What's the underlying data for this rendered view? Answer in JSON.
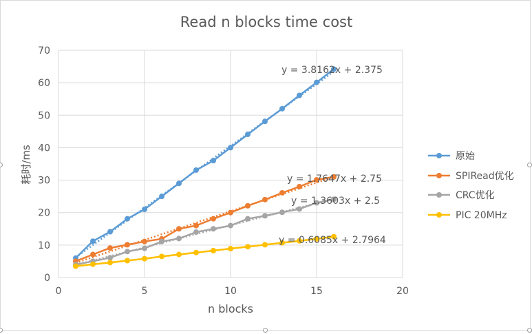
{
  "chart_data": {
    "type": "line",
    "title": "Read n blocks time  cost",
    "xlabel": "n blocks",
    "ylabel": "耗时/ms",
    "xlim": [
      0,
      20
    ],
    "ylim": [
      0,
      70
    ],
    "xticks": [
      0,
      5,
      10,
      15,
      20
    ],
    "yticks": [
      0,
      10,
      20,
      30,
      40,
      50,
      60,
      70
    ],
    "grid": true,
    "legend_position": "right",
    "x": [
      1,
      2,
      3,
      4,
      5,
      6,
      7,
      8,
      9,
      10,
      11,
      12,
      13,
      14,
      15,
      16
    ],
    "series": [
      {
        "name": "原始",
        "color": "#5b9bd5",
        "values": [
          6.0,
          11.2,
          14.1,
          18.1,
          21.0,
          25.0,
          29.0,
          33.1,
          36.0,
          40.0,
          44.1,
          48.1,
          52.0,
          56.1,
          60.1,
          64.2
        ],
        "trendline": {
          "slope": 3.8162,
          "intercept": 2.375,
          "label": "y = 3.8162x + 2.375"
        }
      },
      {
        "name": "SPIRead优化",
        "color": "#ed7d31",
        "values": [
          5.0,
          7.1,
          9.1,
          10.1,
          11.1,
          11.9,
          15.0,
          16.0,
          18.1,
          20.0,
          22.1,
          24.0,
          26.1,
          28.0,
          30.1,
          31.0
        ],
        "trendline": {
          "slope": 1.7647,
          "intercept": 2.75,
          "label": "y = 1.7647x + 2.75"
        }
      },
      {
        "name": "CRC优化",
        "color": "#a5a5a5",
        "values": [
          4.0,
          5.0,
          6.1,
          8.0,
          9.0,
          11.1,
          12.0,
          14.0,
          15.0,
          16.0,
          18.1,
          19.0,
          20.1,
          21.1,
          23.0,
          24.1
        ],
        "trendline": {
          "slope": 1.3603,
          "intercept": 2.5,
          "label": "y = 1.3603x + 2.5"
        }
      },
      {
        "name": "PIC 20MHz",
        "color": "#ffc000",
        "values": [
          3.5,
          4.1,
          4.6,
          5.2,
          5.8,
          6.5,
          7.1,
          7.7,
          8.3,
          8.9,
          9.5,
          10.1,
          10.7,
          11.3,
          11.9,
          12.6
        ],
        "trendline": {
          "slope": 0.6085,
          "intercept": 2.7964,
          "label": "y = 0.6085x + 2.7964"
        }
      }
    ]
  }
}
